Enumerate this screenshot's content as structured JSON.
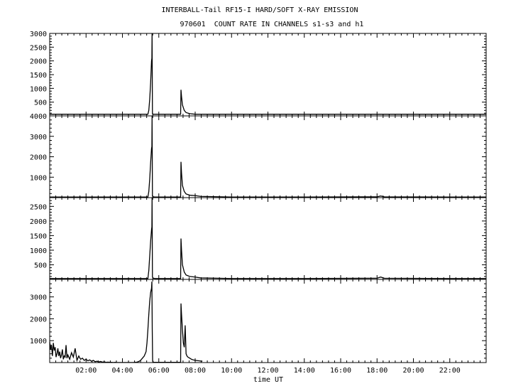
{
  "title": "INTERBALL-Tail RF15-I HARD/SOFT X-RAY EMISSION",
  "subtitle": "970601  COUNT RATE IN CHANNELS s1-s3 and h1",
  "xlabel": "time UT",
  "colors": {
    "line": "#000000",
    "background": "#ffffff"
  },
  "chart_data": [
    {
      "type": "line",
      "panel": 1,
      "x_unit": "hours UT",
      "xlim": [
        0,
        24
      ],
      "ylim": [
        0,
        3000
      ],
      "yticks": [
        500,
        1000,
        1500,
        2000,
        2500,
        3000
      ],
      "xticks": [
        "02:00",
        "04:00",
        "06:00",
        "08:00",
        "10:00",
        "12:00",
        "14:00",
        "16:00",
        "18:00",
        "20:00",
        "22:00"
      ],
      "series": [
        {
          "x": [
            0,
            4,
            5.4,
            5.45,
            5.5,
            5.55,
            5.6,
            5.62,
            5.63,
            5.65,
            5.7,
            5.8,
            6,
            7.2,
            7.22,
            7.25,
            7.3,
            7.4,
            7.5,
            7.7,
            8,
            10,
            14,
            18,
            22,
            24
          ],
          "y": [
            60,
            60,
            60,
            200,
            600,
            1200,
            2000,
            2100,
            3000,
            80,
            60,
            60,
            60,
            60,
            950,
            700,
            400,
            200,
            120,
            80,
            60,
            60,
            60,
            60,
            60,
            60
          ]
        }
      ]
    },
    {
      "type": "line",
      "panel": 2,
      "x_unit": "hours UT",
      "xlim": [
        0,
        24
      ],
      "ylim": [
        0,
        4000
      ],
      "yticks": [
        1000,
        2000,
        3000,
        4000
      ],
      "xticks": [
        "02:00",
        "04:00",
        "06:00",
        "08:00",
        "10:00",
        "12:00",
        "14:00",
        "16:00",
        "18:00",
        "20:00",
        "22:00"
      ],
      "series": [
        {
          "x": [
            0,
            4,
            5.4,
            5.45,
            5.5,
            5.55,
            5.6,
            5.62,
            5.63,
            5.65,
            5.7,
            5.8,
            6,
            7.2,
            7.22,
            7.25,
            7.3,
            7.4,
            7.5,
            7.7,
            8,
            8.3,
            10,
            14,
            18,
            18.2,
            18.4,
            22,
            24
          ],
          "y": [
            30,
            30,
            30,
            300,
            900,
            1700,
            2400,
            2500,
            4000,
            80,
            40,
            30,
            30,
            30,
            1750,
            1200,
            600,
            300,
            180,
            120,
            100,
            60,
            30,
            30,
            40,
            80,
            40,
            30,
            30
          ]
        }
      ]
    },
    {
      "type": "line",
      "panel": 3,
      "x_unit": "hours UT",
      "xlim": [
        0,
        24
      ],
      "ylim": [
        0,
        2800
      ],
      "yticks": [
        500,
        1000,
        1500,
        2000,
        2500
      ],
      "xticks": [
        "02:00",
        "04:00",
        "06:00",
        "08:00",
        "10:00",
        "12:00",
        "14:00",
        "16:00",
        "18:00",
        "20:00",
        "22:00"
      ],
      "series": [
        {
          "x": [
            0,
            4,
            5.4,
            5.45,
            5.5,
            5.55,
            5.6,
            5.62,
            5.63,
            5.65,
            5.7,
            5.8,
            6,
            7.2,
            7.22,
            7.25,
            7.3,
            7.4,
            7.5,
            7.7,
            8,
            8.3,
            10,
            14,
            18,
            18.2,
            18.4,
            22,
            24
          ],
          "y": [
            30,
            30,
            30,
            300,
            800,
            1300,
            1700,
            1800,
            2800,
            80,
            40,
            30,
            30,
            30,
            1400,
            1000,
            500,
            250,
            150,
            100,
            80,
            50,
            30,
            30,
            40,
            80,
            40,
            30,
            30
          ]
        }
      ]
    },
    {
      "type": "line",
      "panel": 4,
      "x_unit": "hours UT",
      "xlim": [
        0,
        24
      ],
      "ylim": [
        0,
        3800
      ],
      "yticks": [
        1000,
        2000,
        3000
      ],
      "xticks": [
        "02:00",
        "04:00",
        "06:00",
        "08:00",
        "10:00",
        "12:00",
        "14:00",
        "16:00",
        "18:00",
        "20:00",
        "22:00"
      ],
      "series": [
        {
          "x": [
            0,
            0.05,
            0.1,
            0.15,
            0.2,
            0.25,
            0.3,
            0.35,
            0.4,
            0.45,
            0.5,
            0.55,
            0.6,
            0.65,
            0.7,
            0.75,
            0.8,
            0.85,
            0.9,
            0.95,
            1.0,
            1.1,
            1.2,
            1.3,
            1.4,
            1.5,
            1.6,
            1.7,
            1.8,
            1.9,
            2.0,
            2.1,
            2.2,
            2.3,
            2.4,
            2.5,
            2.6,
            2.7,
            2.8,
            2.9,
            3.0,
            3.1,
            3.2,
            3.3,
            3.4,
            3.5,
            3.6,
            3.7,
            3.8,
            3.9,
            4.0,
            4.1,
            4.2,
            4.3,
            4.4,
            4.5,
            4.6,
            4.7,
            4.8,
            4.9,
            5.0,
            5.1,
            5.2,
            5.3,
            5.35,
            5.4,
            5.45,
            5.5,
            5.55,
            5.6,
            5.62,
            5.64,
            5.66,
            5.7,
            7.2,
            7.22,
            7.25,
            7.3,
            7.35,
            7.4,
            7.45,
            7.5,
            7.55,
            7.6,
            7.7,
            7.8,
            7.9,
            8.0,
            8.1,
            8.2,
            8.3,
            8.4
          ],
          "y": [
            950,
            600,
            800,
            300,
            900,
            550,
            700,
            250,
            400,
            650,
            300,
            500,
            200,
            350,
            600,
            150,
            300,
            250,
            800,
            200,
            350,
            150,
            450,
            250,
            650,
            100,
            300,
            150,
            200,
            100,
            150,
            80,
            120,
            60,
            100,
            40,
            60,
            30,
            50,
            20,
            30,
            10,
            20,
            10,
            10,
            5,
            10,
            5,
            5,
            5,
            5,
            5,
            5,
            5,
            5,
            5,
            5,
            10,
            20,
            50,
            100,
            200,
            300,
            500,
            900,
            1500,
            2200,
            2800,
            3200,
            3400,
            3700,
            1500,
            100,
            10,
            10,
            2700,
            2200,
            1500,
            900,
            700,
            1700,
            400,
            300,
            250,
            200,
            150,
            120,
            100,
            90,
            80,
            70,
            60
          ]
        }
      ]
    }
  ]
}
